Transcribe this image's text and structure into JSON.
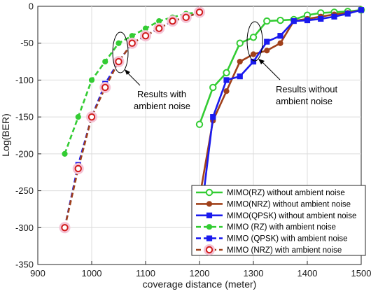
{
  "chart_data": {
    "type": "line",
    "xlabel": "coverage distance (meter)",
    "ylabel": "Log(BER)",
    "xlim": [
      900,
      1500
    ],
    "ylim": [
      -350,
      0
    ],
    "xticks": [
      900,
      1000,
      1100,
      1200,
      1300,
      1400,
      1500
    ],
    "yticks": [
      0,
      -50,
      -100,
      -150,
      -200,
      -250,
      -300,
      -350
    ],
    "grid": true,
    "legend_position": "bottom-right",
    "annotations": [
      {
        "lines": [
          "Results with",
          "ambient noise"
        ]
      },
      {
        "lines": [
          "Results without",
          "ambient noise"
        ]
      }
    ],
    "series": [
      {
        "name": "MIMO(RZ) without ambient noise",
        "color": "#33cc33",
        "style": "solid",
        "marker": "open-circle",
        "x": [
          1200,
          1225,
          1250,
          1275,
          1300,
          1325,
          1350,
          1375,
          1400,
          1425,
          1450,
          1475,
          1500
        ],
        "y": [
          -160,
          -110,
          -90,
          -50,
          -42,
          -20,
          -19,
          -18,
          -12,
          -9,
          -8,
          -7,
          -5
        ]
      },
      {
        "name": "MIMO(NRZ) without ambient noise",
        "color": "#a0401a",
        "style": "solid",
        "marker": "filled-circle",
        "x": [
          1200,
          1225,
          1250,
          1275,
          1300,
          1325,
          1350,
          1375,
          1400,
          1425,
          1450,
          1475,
          1500
        ],
        "y": [
          -260,
          -155,
          -115,
          -75,
          -65,
          -60,
          -50,
          -20,
          -17,
          -14,
          -11,
          -9,
          -5
        ]
      },
      {
        "name": "MIMO(QPSK) without ambient noise",
        "color": "#1a1aee",
        "style": "solid",
        "marker": "filled-square",
        "x": [
          1200,
          1225,
          1250,
          1275,
          1300,
          1325,
          1350,
          1375,
          1400,
          1425,
          1450,
          1475,
          1500
        ],
        "y": [
          -300,
          -150,
          -100,
          -95,
          -75,
          -48,
          -40,
          -20,
          -19,
          -17,
          -14,
          -10,
          -5
        ]
      },
      {
        "name": "MIMO (RZ) with ambient noise",
        "color": "#33cc33",
        "style": "dashed",
        "marker": "filled-circle",
        "x": [
          950,
          975,
          1000,
          1025,
          1050,
          1075,
          1100,
          1125,
          1150,
          1175,
          1200
        ],
        "y": [
          -200,
          -150,
          -100,
          -75,
          -50,
          -40,
          -30,
          -20,
          -15,
          -10,
          -8
        ]
      },
      {
        "name": "MIMO (QPSK) with ambient noise",
        "color": "#1a1aee",
        "style": "dashed",
        "marker": "filled-square",
        "x": [
          950,
          975,
          1000,
          1025,
          1050,
          1075,
          1100,
          1125,
          1150,
          1175,
          1200
        ],
        "y": [
          -300,
          -215,
          -150,
          -105,
          -75,
          -50,
          -40,
          -30,
          -20,
          -15,
          -8
        ]
      },
      {
        "name": "MIMO (NRZ) with ambient noise",
        "color": "#a0401a",
        "style": "dashed",
        "marker": "open-circle-red",
        "x": [
          950,
          975,
          1000,
          1025,
          1050,
          1075,
          1100,
          1125,
          1150,
          1175,
          1200
        ],
        "y": [
          -300,
          -220,
          -150,
          -110,
          -75,
          -50,
          -40,
          -30,
          -20,
          -15,
          -8
        ]
      }
    ]
  }
}
